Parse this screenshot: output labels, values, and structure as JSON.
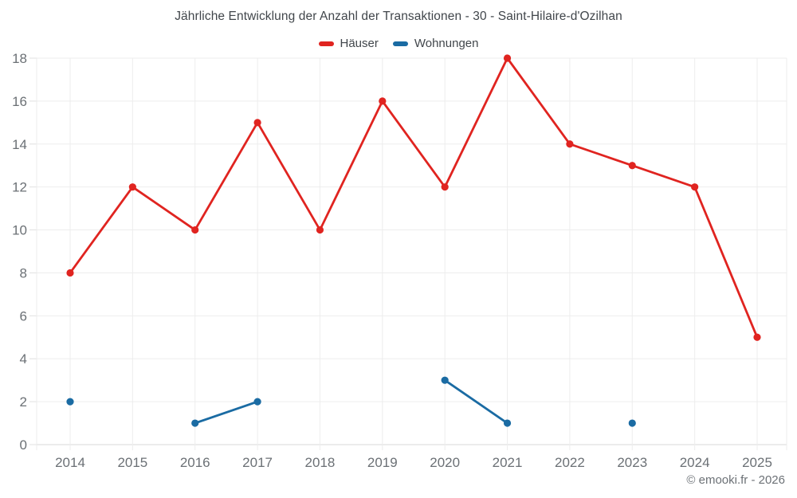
{
  "chart_data": {
    "type": "line",
    "title": "Jährliche Entwicklung der Anzahl der Transaktionen - 30 - Saint-Hilaire-d'Ozilhan",
    "x": [
      2014,
      2015,
      2016,
      2017,
      2018,
      2019,
      2020,
      2021,
      2022,
      2023,
      2024,
      2025
    ],
    "series": [
      {
        "name": "Häuser",
        "color": "#e02420",
        "values": [
          8,
          12,
          10,
          15,
          10,
          16,
          12,
          18,
          14,
          13,
          12,
          5
        ]
      },
      {
        "name": "Wohnungen",
        "color": "#1a6ba3",
        "values": [
          2,
          null,
          1,
          2,
          null,
          null,
          3,
          1,
          null,
          1,
          null,
          null
        ]
      }
    ],
    "xlabel": "",
    "ylabel": "",
    "ylim": [
      0,
      18
    ],
    "ytick_step": 2,
    "yticks": [
      0,
      2,
      4,
      6,
      8,
      10,
      12,
      14,
      16,
      18
    ],
    "grid": true,
    "legend_position": "top",
    "copyright": "© emooki.fr - 2026",
    "colors": {
      "grid": "#ededed",
      "baseline": "#d9d9d9",
      "tick": "#e0e0e0",
      "title_text": "#41464b",
      "axis_text": "#6b7075",
      "copyright_text": "#6c7176"
    }
  }
}
